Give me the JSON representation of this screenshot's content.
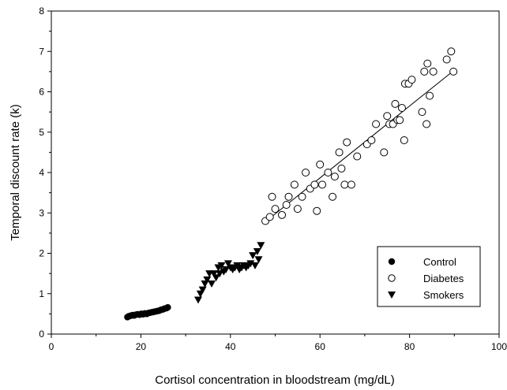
{
  "chart_data": {
    "type": "scatter",
    "title": "",
    "xlabel": "Cortisol concentration in bloodstream (mg/dL)",
    "ylabel": "Temporal discount rate (k)",
    "xlim": [
      0,
      100
    ],
    "ylim": [
      0,
      8
    ],
    "xticks": [
      "0",
      "20",
      "40",
      "60",
      "80",
      "100"
    ],
    "yticks": [
      "0",
      "1",
      "2",
      "3",
      "4",
      "5",
      "6",
      "7",
      "8"
    ],
    "grid": false,
    "legend_position": "bottom-right",
    "series": [
      {
        "name": "Control",
        "marker": "filled-circle",
        "color": "#000000",
        "points": [
          [
            17.0,
            0.42
          ],
          [
            17.3,
            0.44
          ],
          [
            17.6,
            0.45
          ],
          [
            17.9,
            0.46
          ],
          [
            18.2,
            0.47
          ],
          [
            18.5,
            0.46
          ],
          [
            18.9,
            0.48
          ],
          [
            19.3,
            0.49
          ],
          [
            19.7,
            0.48
          ],
          [
            20.1,
            0.5
          ],
          [
            20.5,
            0.49
          ],
          [
            20.9,
            0.51
          ],
          [
            21.3,
            0.5
          ],
          [
            21.7,
            0.52
          ],
          [
            22.1,
            0.53
          ],
          [
            22.5,
            0.54
          ],
          [
            22.9,
            0.55
          ],
          [
            23.3,
            0.56
          ],
          [
            23.7,
            0.57
          ],
          [
            24.1,
            0.58
          ],
          [
            24.5,
            0.6
          ],
          [
            24.9,
            0.61
          ],
          [
            25.3,
            0.63
          ],
          [
            25.7,
            0.64
          ],
          [
            26.0,
            0.66
          ]
        ]
      },
      {
        "name": "Diabetes",
        "marker": "open-circle",
        "color": "#000000",
        "points": [
          [
            47.8,
            2.8
          ],
          [
            48.8,
            2.9
          ],
          [
            49.3,
            3.4
          ],
          [
            50.0,
            3.1
          ],
          [
            51.5,
            2.95
          ],
          [
            52.5,
            3.2
          ],
          [
            53.0,
            3.4
          ],
          [
            54.3,
            3.7
          ],
          [
            55.0,
            3.1
          ],
          [
            56.0,
            3.4
          ],
          [
            56.8,
            4.0
          ],
          [
            57.8,
            3.6
          ],
          [
            58.8,
            3.7
          ],
          [
            59.3,
            3.05
          ],
          [
            60.0,
            4.2
          ],
          [
            60.5,
            3.7
          ],
          [
            61.8,
            4.0
          ],
          [
            62.8,
            3.4
          ],
          [
            63.3,
            3.9
          ],
          [
            64.3,
            4.5
          ],
          [
            64.8,
            4.1
          ],
          [
            65.5,
            3.7
          ],
          [
            66.0,
            4.75
          ],
          [
            67.0,
            3.7
          ],
          [
            68.3,
            4.4
          ],
          [
            70.5,
            4.7
          ],
          [
            71.5,
            4.8
          ],
          [
            72.5,
            5.2
          ],
          [
            74.3,
            4.5
          ],
          [
            75.0,
            5.4
          ],
          [
            75.5,
            5.2
          ],
          [
            76.3,
            5.2
          ],
          [
            76.8,
            5.7
          ],
          [
            77.3,
            5.3
          ],
          [
            77.8,
            5.3
          ],
          [
            78.3,
            5.6
          ],
          [
            78.8,
            4.8
          ],
          [
            79.0,
            6.2
          ],
          [
            79.8,
            6.2
          ],
          [
            80.5,
            6.3
          ],
          [
            82.8,
            5.5
          ],
          [
            83.3,
            6.5
          ],
          [
            83.8,
            5.2
          ],
          [
            84.0,
            6.7
          ],
          [
            84.5,
            5.9
          ],
          [
            85.3,
            6.5
          ],
          [
            88.3,
            6.8
          ],
          [
            89.3,
            7.0
          ],
          [
            89.8,
            6.5
          ]
        ]
      },
      {
        "name": "Smokers",
        "marker": "filled-triangle-down",
        "color": "#000000",
        "points": [
          [
            32.8,
            0.85
          ],
          [
            33.3,
            1.0
          ],
          [
            33.8,
            1.1
          ],
          [
            34.3,
            1.25
          ],
          [
            34.8,
            1.35
          ],
          [
            35.3,
            1.5
          ],
          [
            35.8,
            1.25
          ],
          [
            36.3,
            1.5
          ],
          [
            36.8,
            1.4
          ],
          [
            37.3,
            1.65
          ],
          [
            37.6,
            1.5
          ],
          [
            38.0,
            1.7
          ],
          [
            38.5,
            1.55
          ],
          [
            39.0,
            1.6
          ],
          [
            39.5,
            1.75
          ],
          [
            40.0,
            1.65
          ],
          [
            40.5,
            1.6
          ],
          [
            41.0,
            1.65
          ],
          [
            41.5,
            1.7
          ],
          [
            42.0,
            1.6
          ],
          [
            42.5,
            1.65
          ],
          [
            43.0,
            1.7
          ],
          [
            43.5,
            1.65
          ],
          [
            44.0,
            1.7
          ],
          [
            44.5,
            1.75
          ],
          [
            45.0,
            1.95
          ],
          [
            45.5,
            1.7
          ],
          [
            46.0,
            2.05
          ],
          [
            46.3,
            1.85
          ],
          [
            46.8,
            2.2
          ]
        ]
      }
    ],
    "fit_line": {
      "x": [
        47.8,
        89.8
      ],
      "y": [
        2.78,
        6.52
      ],
      "applies_to": "Diabetes"
    }
  }
}
